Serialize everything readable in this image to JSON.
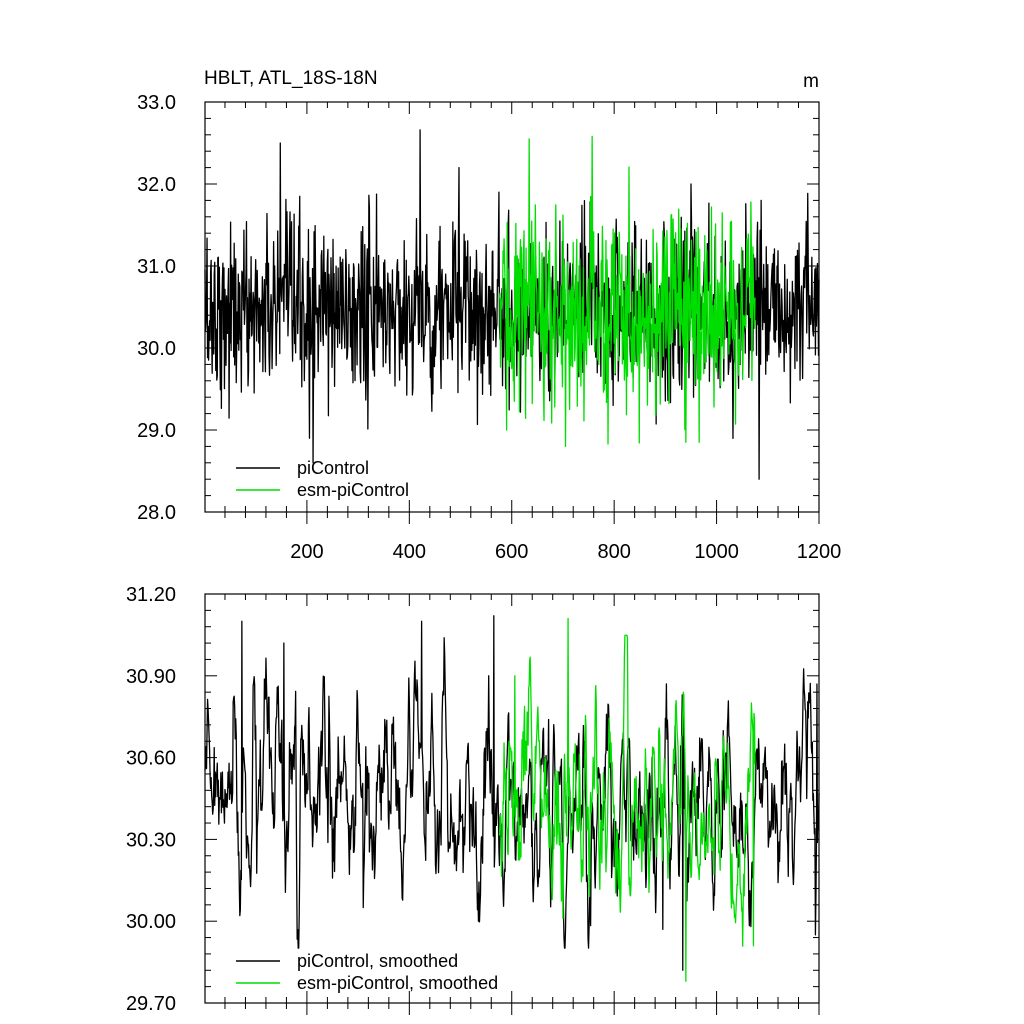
{
  "chart_data": [
    {
      "type": "line",
      "title": "HBLT, ATL_18S-18N",
      "units": "m",
      "xlim": [
        1,
        1200
      ],
      "ylim": [
        28.0,
        33.0
      ],
      "xticks": [
        200,
        400,
        600,
        800,
        1000,
        1200
      ],
      "xtick_labels": [
        "200",
        "400",
        "600",
        "800",
        "1000",
        "1200"
      ],
      "yticks": [
        28.0,
        29.0,
        30.0,
        31.0,
        32.0,
        33.0
      ],
      "ytick_labels": [
        "28.0",
        "29.0",
        "30.0",
        "31.0",
        "32.0",
        "33.0"
      ],
      "legend_position": "bottom-left",
      "series": [
        {
          "name": "piControl",
          "color": "#000000",
          "x_range": [
            1,
            1200
          ],
          "x_step": 1,
          "mean": 30.45,
          "typical_range": [
            29.3,
            31.6
          ],
          "notable_points": [
            {
              "x": 148,
              "y": 32.5
            },
            {
              "x": 212,
              "y": 28.6
            },
            {
              "x": 205,
              "y": 28.9
            },
            {
              "x": 421,
              "y": 32.66
            },
            {
              "x": 497,
              "y": 32.2
            },
            {
              "x": 575,
              "y": 31.9
            },
            {
              "x": 950,
              "y": 32.0
            },
            {
              "x": 1083,
              "y": 28.4
            },
            {
              "x": 1087,
              "y": 31.8
            }
          ]
        },
        {
          "name": "esm-piControl",
          "color": "#00dd00",
          "x_range": [
            576,
            1075
          ],
          "x_step": 1,
          "mean": 30.45,
          "typical_range": [
            29.2,
            31.8
          ],
          "notable_points": [
            {
              "x": 634,
              "y": 32.55
            },
            {
              "x": 757,
              "y": 32.58
            },
            {
              "x": 705,
              "y": 28.8
            },
            {
              "x": 590,
              "y": 29.0
            },
            {
              "x": 940,
              "y": 28.85
            },
            {
              "x": 966,
              "y": 28.85
            }
          ]
        }
      ]
    },
    {
      "type": "line",
      "xlim": [
        1,
        1200
      ],
      "ylim": [
        29.7,
        31.2
      ],
      "xticks": [
        200,
        400,
        600,
        800,
        1000,
        1200
      ],
      "yticks": [
        29.7,
        30.0,
        30.3,
        30.6,
        30.9,
        31.2
      ],
      "ytick_labels": [
        "29.70",
        "30.00",
        "30.30",
        "30.60",
        "30.90",
        "31.20"
      ],
      "legend_position": "bottom-left",
      "series": [
        {
          "name": "piControl, smoothed",
          "color": "#000000",
          "x_range": [
            1,
            1200
          ],
          "x_step": 1,
          "mean": 30.42,
          "typical_range": [
            30.05,
            30.9
          ],
          "notable_points": [
            {
              "x": 73,
              "y": 31.1
            },
            {
              "x": 155,
              "y": 31.02
            },
            {
              "x": 424,
              "y": 31.1
            },
            {
              "x": 555,
              "y": 30.9
            },
            {
              "x": 565,
              "y": 31.12
            },
            {
              "x": 310,
              "y": 30.05
            },
            {
              "x": 535,
              "y": 30.0
            },
            {
              "x": 895,
              "y": 29.97
            },
            {
              "x": 934,
              "y": 29.82
            },
            {
              "x": 1193,
              "y": 29.95
            },
            {
              "x": 1196,
              "y": 30.87
            }
          ]
        },
        {
          "name": "esm-piControl, smoothed",
          "color": "#00dd00",
          "x_range": [
            576,
            1075
          ],
          "x_step": 1,
          "mean": 30.42,
          "typical_range": [
            30.05,
            30.9
          ],
          "notable_points": [
            {
              "x": 710,
              "y": 31.11
            },
            {
              "x": 606,
              "y": 30.9
            },
            {
              "x": 940,
              "y": 29.78
            },
            {
              "x": 1072,
              "y": 29.91
            },
            {
              "x": 700,
              "y": 30.01
            }
          ]
        }
      ]
    }
  ]
}
